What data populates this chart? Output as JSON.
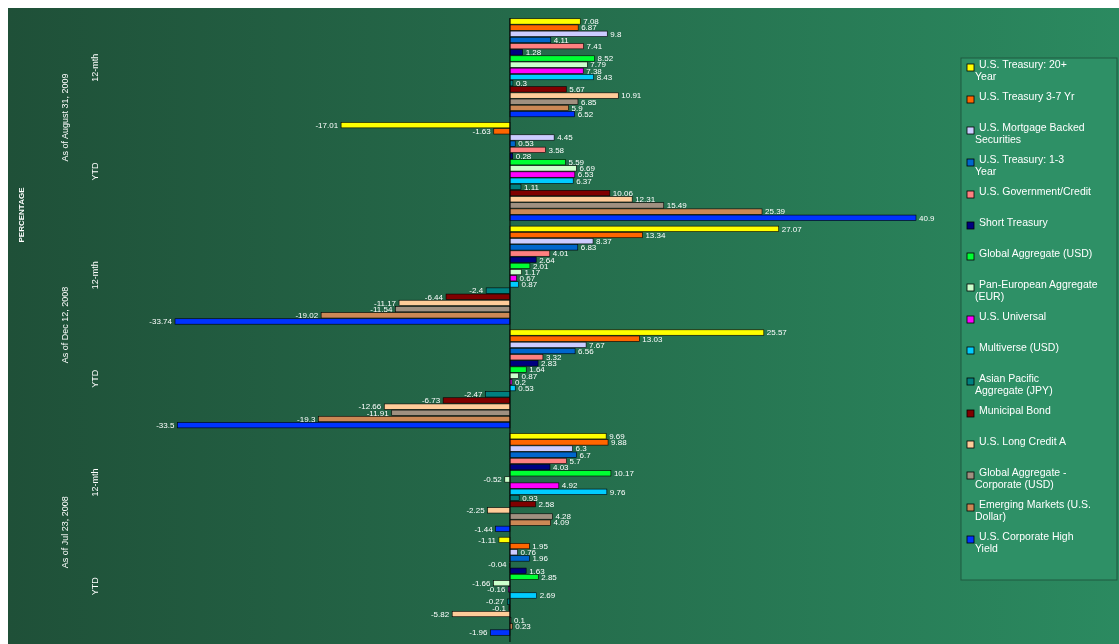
{
  "chart_data": {
    "type": "bar",
    "orientation": "horizontal",
    "categories": [
      "12-mth",
      "YTD",
      "12-mth",
      "YTD",
      "12-mth",
      "YTD"
    ],
    "annotations": [
      "As of August 31, 2009",
      "As of Dec 12, 2008",
      "As of Jul 23, 2008",
      "PERCENTAGE"
    ],
    "data_labels": true,
    "legend": "right",
    "grid": false,
    "series": [
      {
        "name": "U.S. Treasury: 20+ Year",
        "color": "#ffff00",
        "values": [
          7.08,
          -17.01,
          27.07,
          25.57,
          9.69,
          -1.11
        ]
      },
      {
        "name": "U.S. Treasury 3-7 Yr",
        "color": "#ff6600",
        "values": [
          6.87,
          -1.63,
          13.34,
          13.03,
          9.88,
          1.95
        ]
      },
      {
        "name": "U.S. Mortgage Backed Securities",
        "color": "#ccccff",
        "values": [
          9.8,
          4.45,
          8.37,
          7.67,
          6.3,
          0.76
        ]
      },
      {
        "name": "U.S. Treasury: 1-3 Year",
        "color": "#0066cc",
        "values": [
          4.11,
          0.53,
          6.83,
          6.56,
          6.7,
          1.96
        ]
      },
      {
        "name": "U.S. Government/Credit",
        "color": "#ff8080",
        "values": [
          7.41,
          3.58,
          4.01,
          3.32,
          5.7,
          -0.04
        ]
      },
      {
        "name": "Short Treasury",
        "color": "#000080",
        "values": [
          1.28,
          0.28,
          2.64,
          2.83,
          4.03,
          1.63
        ]
      },
      {
        "name": "Global Aggregate (USD)",
        "color": "#00ff33",
        "values": [
          8.52,
          5.59,
          2.01,
          1.64,
          10.17,
          2.85
        ]
      },
      {
        "name": "Pan-European Aggregate (EUR)",
        "color": "#ccffcc",
        "values": [
          7.79,
          6.69,
          1.17,
          0.87,
          -0.52,
          -1.66
        ]
      },
      {
        "name": "U.S. Universal",
        "color": "#ff00ff",
        "values": [
          7.38,
          6.53,
          0.67,
          0.2,
          4.92,
          -0.16
        ]
      },
      {
        "name": "Multiverse (USD)",
        "color": "#00ccff",
        "values": [
          8.43,
          6.37,
          0.87,
          0.53,
          9.76,
          2.69
        ]
      },
      {
        "name": "Asian Pacific Aggregate (JPY)",
        "color": "#008080",
        "values": [
          0.3,
          1.11,
          -2.4,
          -2.47,
          0.93,
          -0.27
        ]
      },
      {
        "name": "Municipal Bond",
        "color": "#800000",
        "values": [
          5.67,
          10.06,
          -6.44,
          -6.73,
          2.58,
          -0.1
        ]
      },
      {
        "name": "U.S. Long Credit A",
        "color": "#ffcc99",
        "values": [
          10.91,
          12.31,
          -11.17,
          -12.66,
          -2.25,
          -5.82
        ]
      },
      {
        "name": "Global Aggregate - Corporate (USD)",
        "color": "#a09080",
        "values": [
          6.85,
          15.49,
          -11.54,
          -11.91,
          4.28,
          0.1
        ]
      },
      {
        "name": "Emerging Markets (U.S. Dollar)",
        "color": "#cc8855",
        "values": [
          5.9,
          25.39,
          -19.02,
          -19.3,
          4.09,
          0.23
        ]
      },
      {
        "name": "U.S. Corporate High Yield",
        "color": "#0033ff",
        "values": [
          6.52,
          40.9,
          -33.74,
          -33.5,
          -1.44,
          -1.96
        ]
      }
    ]
  }
}
